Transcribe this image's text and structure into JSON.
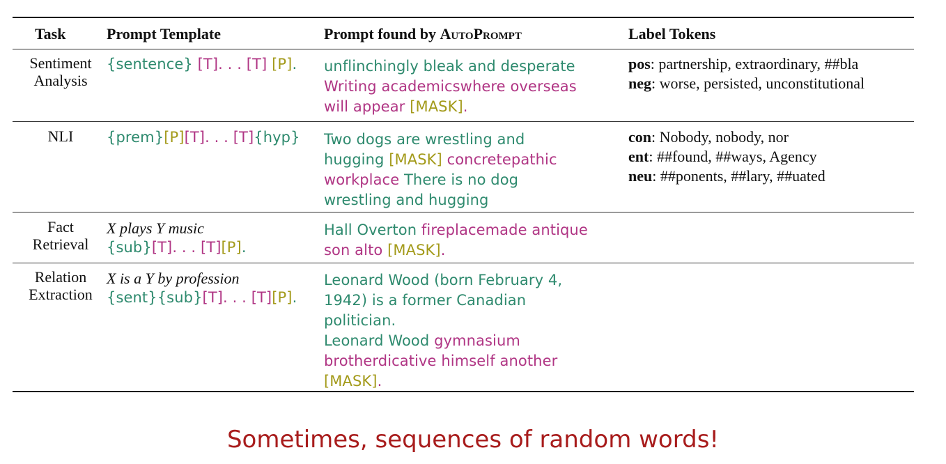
{
  "headers": {
    "task": "Task",
    "template": "Prompt Template",
    "found_prefix": "Prompt found by ",
    "found_name": "AutoPrompt",
    "labels": "Label Tokens"
  },
  "rows": [
    {
      "task_lines": [
        "Sentiment",
        "Analysis"
      ],
      "template": {
        "natural": "",
        "parts": [
          [
            "g",
            "{sentence} "
          ],
          [
            "m",
            "[T]. . . [T] "
          ],
          [
            "o",
            "[P]"
          ],
          [
            "g",
            "."
          ]
        ]
      },
      "found_lines": [
        [
          [
            "g",
            "unflinchingly bleak and desperate"
          ]
        ],
        [
          [
            "m",
            "Writing academicswhere overseas"
          ]
        ],
        [
          [
            "m",
            "will appear "
          ],
          [
            "o",
            "[MASK]"
          ],
          [
            "m",
            "."
          ]
        ]
      ],
      "labels": [
        {
          "key": "pos",
          "value": ": partnership, extraordinary, ##bla"
        },
        {
          "key": "neg",
          "value": ": worse, persisted, unconstitutional"
        }
      ]
    },
    {
      "task_lines": [
        "NLI"
      ],
      "template": {
        "natural": "",
        "parts": [
          [
            "g",
            "{prem}"
          ],
          [
            "o",
            "[P]"
          ],
          [
            "m",
            "[T]. . . [T]"
          ],
          [
            "g",
            "{hyp}"
          ]
        ]
      },
      "found_lines": [
        [
          [
            "g",
            "Two dogs are wrestling and"
          ]
        ],
        [
          [
            "g",
            "hugging "
          ],
          [
            "o",
            "[MASK]"
          ],
          [
            "m",
            " concretepathic"
          ]
        ],
        [
          [
            "m",
            "workplace "
          ],
          [
            "g",
            "There is no dog"
          ]
        ],
        [
          [
            "g",
            "wrestling and hugging"
          ]
        ]
      ],
      "labels": [
        {
          "key": "con",
          "value": ": Nobody, nobody, nor"
        },
        {
          "key": "ent",
          "value": ": ##found, ##ways, Agency"
        },
        {
          "key": "neu",
          "value": ": ##ponents, ##lary, ##uated"
        }
      ]
    },
    {
      "task_lines": [
        "Fact",
        "Retrieval"
      ],
      "template": {
        "natural": "X plays Y music",
        "parts": [
          [
            "g",
            "{sub}"
          ],
          [
            "m",
            "[T]. . . [T]"
          ],
          [
            "o",
            "[P]"
          ],
          [
            "g",
            "."
          ]
        ]
      },
      "found_lines": [
        [
          [
            "g",
            "Hall Overton "
          ],
          [
            "m",
            "fireplacemade antique"
          ]
        ],
        [
          [
            "m",
            "son alto "
          ],
          [
            "o",
            "[MASK]"
          ],
          [
            "m",
            "."
          ]
        ]
      ],
      "labels": []
    },
    {
      "task_lines": [
        "Relation",
        "Extraction"
      ],
      "template": {
        "natural": "X is a Y by profession",
        "parts": [
          [
            "g",
            "{sent}{sub}"
          ],
          [
            "m",
            "[T]. . . [T]"
          ],
          [
            "o",
            "[P]"
          ],
          [
            "g",
            "."
          ]
        ]
      },
      "found_lines": [
        [
          [
            "g",
            "Leonard Wood (born February 4,"
          ]
        ],
        [
          [
            "g",
            "1942) is a former Canadian"
          ]
        ],
        [
          [
            "g",
            "politician."
          ]
        ],
        [
          [
            "g",
            "Leonard Wood "
          ],
          [
            "m",
            "gymnasium"
          ]
        ],
        [
          [
            "m",
            "brotherdicative himself another"
          ]
        ],
        [
          [
            "o",
            "[MASK]"
          ],
          [
            "m",
            "."
          ]
        ]
      ],
      "labels": []
    }
  ],
  "footer": "Sometimes, sequences of random words!",
  "colors": {
    "green": "#2e8a6e",
    "magenta": "#b03584",
    "olive": "#a39a1a",
    "footer_red": "#a81c1c"
  }
}
